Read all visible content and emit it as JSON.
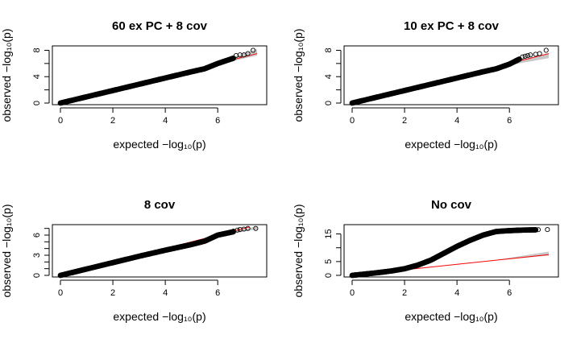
{
  "figure": {
    "xlabel": "expected −log₁₀(p)",
    "ylabel": "observed −log₁₀(p)"
  },
  "chart_data": [
    {
      "type": "scatter",
      "title": "60 ex PC + 8 cov",
      "xlabel": "expected −log₁₀(p)",
      "ylabel": "observed −log₁₀(p)",
      "xlim": [
        0,
        7.5
      ],
      "ylim": [
        0,
        8.3
      ],
      "xticks": [
        0,
        2,
        4,
        6
      ],
      "yticks": [
        0,
        4,
        8
      ],
      "yminor": [
        2,
        6
      ],
      "reference_line": {
        "color": "#ff0000",
        "slope": 1,
        "band_x": [
          5.5,
          7.5
        ],
        "band_y_low": [
          5.4,
          7.2
        ],
        "band_y_high": [
          5.6,
          8.2
        ]
      },
      "curve": [
        [
          0,
          0
        ],
        [
          1,
          0.95
        ],
        [
          2,
          1.9
        ],
        [
          3,
          2.85
        ],
        [
          4,
          3.8
        ],
        [
          5,
          4.75
        ],
        [
          5.5,
          5.2
        ],
        [
          6,
          6.0
        ],
        [
          6.6,
          6.8
        ]
      ],
      "tail_points": [
        [
          6.7,
          7.2
        ],
        [
          6.85,
          7.3
        ],
        [
          7.0,
          7.3
        ],
        [
          7.15,
          7.5
        ],
        [
          7.35,
          8.0
        ]
      ]
    },
    {
      "type": "scatter",
      "title": "10 ex PC + 8 cov",
      "xlabel": "expected −log₁₀(p)",
      "ylabel": "observed −log₁₀(p)",
      "xlim": [
        0,
        7.5
      ],
      "ylim": [
        0,
        8.3
      ],
      "xticks": [
        0,
        2,
        4,
        6
      ],
      "yticks": [
        0,
        4,
        8
      ],
      "yminor": [
        2,
        6
      ],
      "reference_line": {
        "color": "#ff0000",
        "slope": 1,
        "band_x": [
          5.5,
          7.5
        ],
        "band_y_low": [
          5.4,
          6.8
        ],
        "band_y_high": [
          5.6,
          7.6
        ]
      },
      "curve": [
        [
          0,
          0
        ],
        [
          1,
          0.95
        ],
        [
          2,
          1.9
        ],
        [
          3,
          2.85
        ],
        [
          4,
          3.8
        ],
        [
          5,
          4.75
        ],
        [
          5.5,
          5.2
        ],
        [
          6,
          5.9
        ],
        [
          6.4,
          6.7
        ]
      ],
      "tail_points": [
        [
          6.5,
          7.0
        ],
        [
          6.6,
          7.1
        ],
        [
          6.7,
          7.2
        ],
        [
          6.8,
          7.3
        ],
        [
          7.0,
          7.4
        ],
        [
          7.15,
          7.5
        ],
        [
          7.4,
          8.0
        ]
      ]
    },
    {
      "type": "scatter",
      "title": "8 cov",
      "xlabel": "expected −log₁₀(p)",
      "ylabel": "observed −log₁₀(p)",
      "xlim": [
        0,
        7.5
      ],
      "ylim": [
        0,
        7.2
      ],
      "xticks": [
        0,
        2,
        4,
        6
      ],
      "yticks": [
        0,
        3,
        6
      ],
      "yminor": [
        1,
        2,
        4,
        5,
        7
      ],
      "reference_line": {
        "color": "#ff0000",
        "slope": 1,
        "band_x": [
          5.5,
          7.5
        ],
        "band_y_low": [
          5.4,
          6.9
        ],
        "band_y_high": [
          5.6,
          7.3
        ]
      },
      "curve": [
        [
          0,
          0
        ],
        [
          1,
          0.95
        ],
        [
          2,
          1.9
        ],
        [
          3,
          2.85
        ],
        [
          4,
          3.75
        ],
        [
          5,
          4.6
        ],
        [
          5.5,
          5.1
        ],
        [
          6,
          6.0
        ],
        [
          6.6,
          6.5
        ]
      ],
      "tail_points": [
        [
          6.6,
          6.6
        ],
        [
          6.75,
          6.75
        ],
        [
          6.85,
          6.85
        ],
        [
          7.0,
          6.9
        ],
        [
          7.15,
          7.0
        ],
        [
          7.45,
          7.0
        ]
      ]
    },
    {
      "type": "scatter",
      "title": "No cov",
      "xlabel": "expected −log₁₀(p)",
      "ylabel": "observed −log₁₀(p)",
      "xlim": [
        0,
        7.5
      ],
      "ylim": [
        0,
        17.5
      ],
      "xticks": [
        0,
        2,
        4,
        6
      ],
      "yticks": [
        0,
        5,
        15
      ],
      "yminor": [
        10
      ],
      "reference_line": {
        "color": "#ff0000",
        "slope": 1,
        "band_x": [
          5.5,
          7.5
        ],
        "band_y_low": [
          5.4,
          7.2
        ],
        "band_y_high": [
          5.6,
          8.6
        ]
      },
      "curve": [
        [
          0,
          0
        ],
        [
          0.5,
          0.5
        ],
        [
          1,
          1.0
        ],
        [
          1.5,
          1.6
        ],
        [
          2,
          2.4
        ],
        [
          2.5,
          3.7
        ],
        [
          3,
          5.5
        ],
        [
          3.5,
          8.0
        ],
        [
          4,
          10.5
        ],
        [
          4.5,
          12.7
        ],
        [
          5,
          14.6
        ],
        [
          5.5,
          15.9
        ],
        [
          6,
          16.2
        ],
        [
          6.5,
          16.4
        ],
        [
          7,
          16.5
        ]
      ],
      "tail_points": [
        [
          6.3,
          16.45
        ],
        [
          6.5,
          16.5
        ],
        [
          6.7,
          16.5
        ],
        [
          6.9,
          16.55
        ],
        [
          7.1,
          16.55
        ],
        [
          7.45,
          16.6
        ]
      ]
    }
  ]
}
